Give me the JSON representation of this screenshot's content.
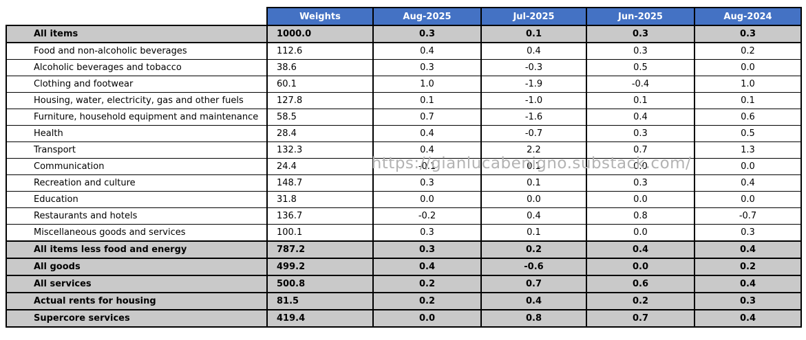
{
  "watermark": {
    "text": "https://gianlucabenigno.substack.com/"
  },
  "colors": {
    "header_bg": "#4472c4",
    "header_text": "#ffffff",
    "summary_row_bg": "#c9c9c9",
    "border": "#000000",
    "watermark": "#b3b3b3"
  },
  "chart_data": {
    "type": "table",
    "title": "",
    "columns": [
      "",
      "Weights",
      "Aug-2025",
      "Jul-2025",
      "Jun-2025",
      "Aug-2024"
    ],
    "rows": [
      {
        "label": "All items",
        "emphasis": true,
        "weights": "1000.0",
        "values": [
          "0.3",
          "0.1",
          "0.3",
          "0.3"
        ]
      },
      {
        "label": "Food and non-alcoholic beverages",
        "emphasis": false,
        "weights": "112.6",
        "values": [
          "0.4",
          "0.4",
          "0.3",
          "0.2"
        ]
      },
      {
        "label": "Alcoholic beverages and tobacco",
        "emphasis": false,
        "weights": "38.6",
        "values": [
          "0.3",
          "-0.3",
          "0.5",
          "0.0"
        ]
      },
      {
        "label": "Clothing and footwear",
        "emphasis": false,
        "weights": "60.1",
        "values": [
          "1.0",
          "-1.9",
          "-0.4",
          "1.0"
        ]
      },
      {
        "label": "Housing, water, electricity, gas and other fuels",
        "emphasis": false,
        "weights": "127.8",
        "values": [
          "0.1",
          "-1.0",
          "0.1",
          "0.1"
        ]
      },
      {
        "label": "Furniture, household equipment and maintenance",
        "emphasis": false,
        "weights": "58.5",
        "values": [
          "0.7",
          "-1.6",
          "0.4",
          "0.6"
        ]
      },
      {
        "label": "Health",
        "emphasis": false,
        "weights": "28.4",
        "values": [
          "0.4",
          "-0.7",
          "0.3",
          "0.5"
        ]
      },
      {
        "label": "Transport",
        "emphasis": false,
        "weights": "132.3",
        "values": [
          "0.4",
          "2.2",
          "0.7",
          "1.3"
        ]
      },
      {
        "label": "Communication",
        "emphasis": false,
        "weights": "24.4",
        "values": [
          "-0.1",
          "0.1",
          "0.0",
          "0.0"
        ]
      },
      {
        "label": "Recreation and culture",
        "emphasis": false,
        "weights": "148.7",
        "values": [
          "0.3",
          "0.1",
          "0.3",
          "0.4"
        ]
      },
      {
        "label": "Education",
        "emphasis": false,
        "weights": "31.8",
        "values": [
          "0.0",
          "0.0",
          "0.0",
          "0.0"
        ]
      },
      {
        "label": "Restaurants and hotels",
        "emphasis": false,
        "weights": "136.7",
        "values": [
          "-0.2",
          "0.4",
          "0.8",
          "-0.7"
        ]
      },
      {
        "label": "Miscellaneous goods and services",
        "emphasis": false,
        "weights": "100.1",
        "values": [
          "0.3",
          "0.1",
          "0.0",
          "0.3"
        ]
      },
      {
        "label": "All items less food and energy",
        "emphasis": true,
        "weights": "787.2",
        "values": [
          "0.3",
          "0.2",
          "0.4",
          "0.4"
        ]
      },
      {
        "label": "All goods",
        "emphasis": true,
        "weights": "499.2",
        "values": [
          "0.4",
          "-0.6",
          "0.0",
          "0.2"
        ]
      },
      {
        "label": "All services",
        "emphasis": true,
        "weights": "500.8",
        "values": [
          "0.2",
          "0.7",
          "0.6",
          "0.4"
        ]
      },
      {
        "label": "Actual rents for housing",
        "emphasis": true,
        "weights": "81.5",
        "values": [
          "0.2",
          "0.4",
          "0.2",
          "0.3"
        ]
      },
      {
        "label": "Supercore services",
        "emphasis": true,
        "weights": "419.4",
        "values": [
          "0.0",
          "0.8",
          "0.7",
          "0.4"
        ]
      }
    ]
  }
}
